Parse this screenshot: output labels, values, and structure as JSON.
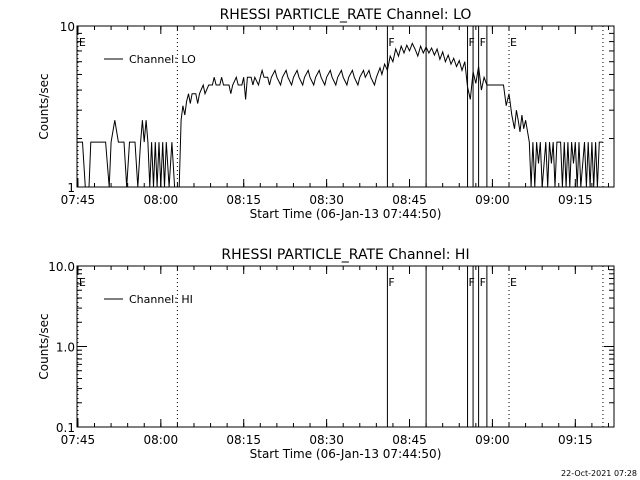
{
  "chart_data": [
    {
      "type": "line",
      "title": "RHESSI PARTICLE_RATE Channel: LO",
      "xlabel": "Start Time (06-Jan-13 07:44:50)",
      "ylabel": "Counts/sec",
      "yscale": "log",
      "ylim": [
        1,
        10
      ],
      "ytick_labels": [
        "1",
        "10"
      ],
      "xlim": [
        "07:44:50",
        "09:22:00"
      ],
      "xtick_labels": [
        "07:45",
        "08:00",
        "08:15",
        "08:30",
        "08:45",
        "09:00",
        "09:15"
      ],
      "legend": {
        "position": "top-left",
        "entries": [
          "Channel: LO"
        ]
      },
      "markers": [
        {
          "time": "07:45:00",
          "kind": "dotted",
          "label": "E"
        },
        {
          "time": "08:03:00",
          "kind": "dotted",
          "label": ""
        },
        {
          "time": "08:41:00",
          "kind": "solid",
          "label": "F"
        },
        {
          "time": "08:48:00",
          "kind": "solid",
          "label": ""
        },
        {
          "time": "08:55:30",
          "kind": "solid",
          "label": "F"
        },
        {
          "time": "08:56:30",
          "kind": "solid",
          "label": ""
        },
        {
          "time": "08:57:30",
          "kind": "solid",
          "label": "F"
        },
        {
          "time": "08:59:00",
          "kind": "solid",
          "label": ""
        },
        {
          "time": "09:03:00",
          "kind": "dotted",
          "label": "E"
        },
        {
          "time": "09:20:00",
          "kind": "dotted",
          "label": ""
        }
      ],
      "series": [
        {
          "name": "Channel: LO",
          "points": [
            [
              "07:44:50",
              1.9
            ],
            [
              "07:45:50",
              1.9
            ],
            [
              "07:46:20",
              1.0
            ],
            [
              "07:47:00",
              1.0
            ],
            [
              "07:47:20",
              1.9
            ],
            [
              "07:50:00",
              1.9
            ],
            [
              "07:50:40",
              1.0
            ],
            [
              "07:51:00",
              1.9
            ],
            [
              "07:51:40",
              2.6
            ],
            [
              "07:52:20",
              1.9
            ],
            [
              "07:53:20",
              1.9
            ],
            [
              "07:53:50",
              1.0
            ],
            [
              "07:54:20",
              1.9
            ],
            [
              "07:55:20",
              1.9
            ],
            [
              "07:55:50",
              1.0
            ],
            [
              "07:56:20",
              1.9
            ],
            [
              "07:56:40",
              2.6
            ],
            [
              "07:57:00",
              1.9
            ],
            [
              "07:57:20",
              2.6
            ],
            [
              "07:57:40",
              1.9
            ],
            [
              "07:58:00",
              1.0
            ],
            [
              "07:58:20",
              1.9
            ],
            [
              "07:58:40",
              1.0
            ],
            [
              "07:59:00",
              1.9
            ],
            [
              "07:59:20",
              1.0
            ],
            [
              "07:59:40",
              1.9
            ],
            [
              "08:00:00",
              1.0
            ],
            [
              "08:00:20",
              1.9
            ],
            [
              "08:00:40",
              1.0
            ],
            [
              "08:01:00",
              1.9
            ],
            [
              "08:01:30",
              1.0
            ],
            [
              "08:02:00",
              1.9
            ],
            [
              "08:02:30",
              1.0
            ],
            [
              "08:03:20",
              1.0
            ],
            [
              "08:03:40",
              2.6
            ],
            [
              "08:04:00",
              3.2
            ],
            [
              "08:04:20",
              2.8
            ],
            [
              "08:04:40",
              3.4
            ],
            [
              "08:05:00",
              3.8
            ],
            [
              "08:05:20",
              3.3
            ],
            [
              "08:05:40",
              3.8
            ],
            [
              "08:06:20",
              3.8
            ],
            [
              "08:06:40",
              3.3
            ],
            [
              "08:07:00",
              3.8
            ],
            [
              "08:07:40",
              4.3
            ],
            [
              "08:08:00",
              3.8
            ],
            [
              "08:08:40",
              4.3
            ],
            [
              "08:09:20",
              4.3
            ],
            [
              "08:09:40",
              4.8
            ],
            [
              "08:10:00",
              4.3
            ],
            [
              "08:10:40",
              4.3
            ],
            [
              "08:11:00",
              4.8
            ],
            [
              "08:11:20",
              4.3
            ],
            [
              "08:12:20",
              4.3
            ],
            [
              "08:12:40",
              3.8
            ],
            [
              "08:13:00",
              4.3
            ],
            [
              "08:13:40",
              4.8
            ],
            [
              "08:14:00",
              4.3
            ],
            [
              "08:14:40",
              4.3
            ],
            [
              "08:15:00",
              4.8
            ],
            [
              "08:15:20",
              3.5
            ],
            [
              "08:15:40",
              4.8
            ],
            [
              "08:16:20",
              4.8
            ],
            [
              "08:16:40",
              4.3
            ],
            [
              "08:17:00",
              4.8
            ],
            [
              "08:17:40",
              4.3
            ],
            [
              "08:18:00",
              4.8
            ],
            [
              "08:18:20",
              5.3
            ],
            [
              "08:18:40",
              4.8
            ],
            [
              "08:19:20",
              4.8
            ],
            [
              "08:19:40",
              4.3
            ],
            [
              "08:20:00",
              4.8
            ],
            [
              "08:20:40",
              5.3
            ],
            [
              "08:21:00",
              4.8
            ],
            [
              "08:21:40",
              4.3
            ],
            [
              "08:22:00",
              4.8
            ],
            [
              "08:22:40",
              5.3
            ],
            [
              "08:23:00",
              4.8
            ],
            [
              "08:23:40",
              4.3
            ],
            [
              "08:24:00",
              4.8
            ],
            [
              "08:24:40",
              5.3
            ],
            [
              "08:25:00",
              4.8
            ],
            [
              "08:25:40",
              4.3
            ],
            [
              "08:26:00",
              4.8
            ],
            [
              "08:26:40",
              5.3
            ],
            [
              "08:27:00",
              4.8
            ],
            [
              "08:27:40",
              4.3
            ],
            [
              "08:28:00",
              4.8
            ],
            [
              "08:28:40",
              5.3
            ],
            [
              "08:29:00",
              4.8
            ],
            [
              "08:29:40",
              4.3
            ],
            [
              "08:30:00",
              4.8
            ],
            [
              "08:30:40",
              5.3
            ],
            [
              "08:31:00",
              4.8
            ],
            [
              "08:31:40",
              4.3
            ],
            [
              "08:32:00",
              4.8
            ],
            [
              "08:32:40",
              5.3
            ],
            [
              "08:33:00",
              4.8
            ],
            [
              "08:33:40",
              4.3
            ],
            [
              "08:34:00",
              4.8
            ],
            [
              "08:34:40",
              5.3
            ],
            [
              "08:35:00",
              4.8
            ],
            [
              "08:35:40",
              4.3
            ],
            [
              "08:36:00",
              4.8
            ],
            [
              "08:36:40",
              5.3
            ],
            [
              "08:37:00",
              4.8
            ],
            [
              "08:37:40",
              5.3
            ],
            [
              "08:38:00",
              4.8
            ],
            [
              "08:38:40",
              4.3
            ],
            [
              "08:39:00",
              4.8
            ],
            [
              "08:39:40",
              5.5
            ],
            [
              "08:40:00",
              5.0
            ],
            [
              "08:40:30",
              5.8
            ],
            [
              "08:41:00",
              5.3
            ],
            [
              "08:41:30",
              6.5
            ],
            [
              "08:42:00",
              6.0
            ],
            [
              "08:42:30",
              7.2
            ],
            [
              "08:43:00",
              6.5
            ],
            [
              "08:43:30",
              7.5
            ],
            [
              "08:44:00",
              6.8
            ],
            [
              "08:44:30",
              7.6
            ],
            [
              "08:45:00",
              7.0
            ],
            [
              "08:45:30",
              7.8
            ],
            [
              "08:46:00",
              7.2
            ],
            [
              "08:46:30",
              6.5
            ],
            [
              "08:47:00",
              7.5
            ],
            [
              "08:47:30",
              6.8
            ],
            [
              "08:48:00",
              7.4
            ],
            [
              "08:48:30",
              6.8
            ],
            [
              "08:49:00",
              7.3
            ],
            [
              "08:49:30",
              6.6
            ],
            [
              "08:50:00",
              7.2
            ],
            [
              "08:50:30",
              6.2
            ],
            [
              "08:51:00",
              6.9
            ],
            [
              "08:51:30",
              6.0
            ],
            [
              "08:52:00",
              6.6
            ],
            [
              "08:52:30",
              5.8
            ],
            [
              "08:53:00",
              6.3
            ],
            [
              "08:53:30",
              5.6
            ],
            [
              "08:54:00",
              6.1
            ],
            [
              "08:54:30",
              5.3
            ],
            [
              "08:55:00",
              6.0
            ],
            [
              "08:55:30",
              4.2
            ],
            [
              "08:56:00",
              3.5
            ],
            [
              "08:56:30",
              5.2
            ],
            [
              "08:57:00",
              4.4
            ],
            [
              "08:57:30",
              5.6
            ],
            [
              "08:58:00",
              4.0
            ],
            [
              "08:58:30",
              4.8
            ],
            [
              "08:59:00",
              4.3
            ],
            [
              "09:00:00",
              4.3
            ],
            [
              "09:01:00",
              4.3
            ],
            [
              "09:02:00",
              4.3
            ],
            [
              "09:02:30",
              3.2
            ],
            [
              "09:03:00",
              3.8
            ],
            [
              "09:03:30",
              2.8
            ],
            [
              "09:04:00",
              2.3
            ],
            [
              "09:04:20",
              3.0
            ],
            [
              "09:04:40",
              2.6
            ],
            [
              "09:05:00",
              2.2
            ],
            [
              "09:05:20",
              2.8
            ],
            [
              "09:05:40",
              2.3
            ],
            [
              "09:06:00",
              2.6
            ],
            [
              "09:06:40",
              1.9
            ],
            [
              "09:07:00",
              1.0
            ],
            [
              "09:07:20",
              1.9
            ],
            [
              "09:07:40",
              1.0
            ],
            [
              "09:08:00",
              1.9
            ],
            [
              "09:08:20",
              1.4
            ],
            [
              "09:08:40",
              1.9
            ],
            [
              "09:09:00",
              1.0
            ],
            [
              "09:09:40",
              1.9
            ],
            [
              "09:10:00",
              1.0
            ],
            [
              "09:10:20",
              1.9
            ],
            [
              "09:10:40",
              1.4
            ],
            [
              "09:11:00",
              1.9
            ],
            [
              "09:11:20",
              1.0
            ],
            [
              "09:11:40",
              1.9
            ],
            [
              "09:12:20",
              1.9
            ],
            [
              "09:12:40",
              1.0
            ],
            [
              "09:13:00",
              1.9
            ],
            [
              "09:13:20",
              1.0
            ],
            [
              "09:13:40",
              1.9
            ],
            [
              "09:14:00",
              1.0
            ],
            [
              "09:14:20",
              1.9
            ],
            [
              "09:14:40",
              1.4
            ],
            [
              "09:15:00",
              1.9
            ],
            [
              "09:15:20",
              1.0
            ],
            [
              "09:15:40",
              1.9
            ],
            [
              "09:16:00",
              1.0
            ],
            [
              "09:16:40",
              1.9
            ],
            [
              "09:17:00",
              1.0
            ],
            [
              "09:17:20",
              1.9
            ],
            [
              "09:17:40",
              1.0
            ],
            [
              "09:18:00",
              1.9
            ],
            [
              "09:18:20",
              1.0
            ],
            [
              "09:18:40",
              1.9
            ],
            [
              "09:19:00",
              1.0
            ],
            [
              "09:19:20",
              1.9
            ],
            [
              "09:20:00",
              1.9
            ]
          ]
        }
      ]
    },
    {
      "type": "line",
      "title": "RHESSI PARTICLE_RATE Channel: HI",
      "xlabel": "Start Time (06-Jan-13 07:44:50)",
      "ylabel": "Counts/sec",
      "yscale": "log",
      "ylim": [
        0.1,
        10
      ],
      "ytick_labels": [
        "0.1",
        "1.0",
        "10.0"
      ],
      "xlim": [
        "07:44:50",
        "09:22:00"
      ],
      "xtick_labels": [
        "07:45",
        "08:00",
        "08:15",
        "08:30",
        "08:45",
        "09:00",
        "09:15"
      ],
      "legend": {
        "position": "top-left",
        "entries": [
          "Channel: HI"
        ]
      },
      "markers": [
        {
          "time": "07:45:00",
          "kind": "dotted",
          "label": "E"
        },
        {
          "time": "08:03:00",
          "kind": "dotted",
          "label": ""
        },
        {
          "time": "08:41:00",
          "kind": "solid",
          "label": "F"
        },
        {
          "time": "08:48:00",
          "kind": "solid",
          "label": ""
        },
        {
          "time": "08:55:30",
          "kind": "solid",
          "label": "F"
        },
        {
          "time": "08:56:30",
          "kind": "solid",
          "label": ""
        },
        {
          "time": "08:57:30",
          "kind": "solid",
          "label": "F"
        },
        {
          "time": "08:59:00",
          "kind": "solid",
          "label": ""
        },
        {
          "time": "09:03:00",
          "kind": "dotted",
          "label": "E"
        },
        {
          "time": "09:20:00",
          "kind": "dotted",
          "label": ""
        }
      ],
      "series": [
        {
          "name": "Channel: HI",
          "points": []
        }
      ]
    }
  ],
  "timestamp": "22-Oct-2021 07:28"
}
